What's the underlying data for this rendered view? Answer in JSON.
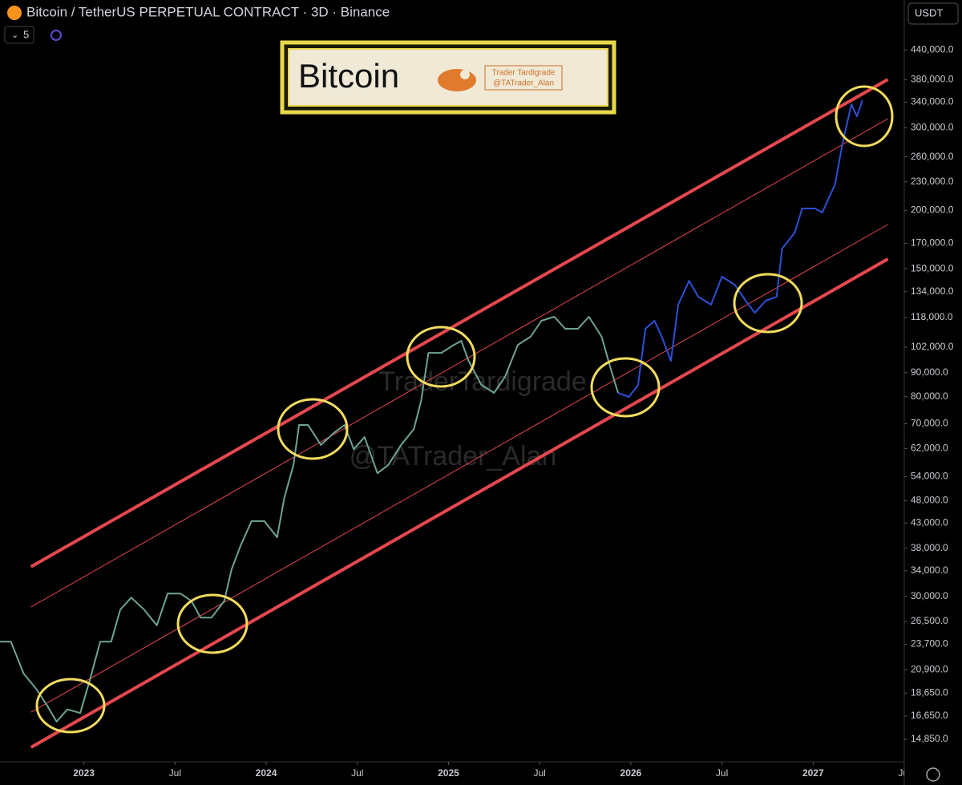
{
  "toolbar": {
    "indicator_count": "5",
    "currency": "USDT"
  },
  "logo": {
    "title": "Bitcoin",
    "badge_name": "Trader Tardigrade",
    "badge_handle": "@TATrader_Alan"
  },
  "watermark": {
    "name": "TraderTardigrade",
    "handle": "@TATrader_Alan"
  },
  "chart_data": {
    "type": "line",
    "title": "Bitcoin / TetherUS PERPETUAL CONTRACT · 3D · Binance",
    "log_scale": true,
    "grid": false,
    "xlim": [
      2022.54,
      2027.5
    ],
    "ylim": [
      13300,
      562000
    ],
    "xticks": [
      {
        "value": 2023,
        "label": "2023"
      },
      {
        "value": 2023.5,
        "label": "Jul"
      },
      {
        "value": 2024,
        "label": "2024"
      },
      {
        "value": 2024.5,
        "label": "Jul"
      },
      {
        "value": 2025,
        "label": "2025"
      },
      {
        "value": 2025.5,
        "label": "Jul"
      },
      {
        "value": 2026,
        "label": "2026"
      },
      {
        "value": 2026.5,
        "label": "Jul"
      },
      {
        "value": 2027,
        "label": "2027"
      },
      {
        "value": 2027.5,
        "label": "Jul"
      }
    ],
    "yticks": [
      {
        "value": 440000,
        "label": "440,000.0"
      },
      {
        "value": 380000,
        "label": "380,000.0"
      },
      {
        "value": 340000,
        "label": "340,000.0"
      },
      {
        "value": 300000,
        "label": "300,000.0"
      },
      {
        "value": 260000,
        "label": "260,000.0"
      },
      {
        "value": 230000,
        "label": "230,000.0"
      },
      {
        "value": 200000,
        "label": "200,000.0"
      },
      {
        "value": 170000,
        "label": "170,000.0"
      },
      {
        "value": 150000,
        "label": "150,000.0"
      },
      {
        "value": 134000,
        "label": "134,000.0"
      },
      {
        "value": 118000,
        "label": "118,000.0"
      },
      {
        "value": 102000,
        "label": "102,000.0"
      },
      {
        "value": 90000,
        "label": "90,000.0"
      },
      {
        "value": 80000,
        "label": "80,000.0"
      },
      {
        "value": 70000,
        "label": "70,000.0"
      },
      {
        "value": 62000,
        "label": "62,000.0"
      },
      {
        "value": 54000,
        "label": "54,000.0"
      },
      {
        "value": 48000,
        "label": "48,000.0"
      },
      {
        "value": 43000,
        "label": "43,000.0"
      },
      {
        "value": 38000,
        "label": "38,000.0"
      },
      {
        "value": 34000,
        "label": "34,000.0"
      },
      {
        "value": 30000,
        "label": "30,000.0"
      },
      {
        "value": 26500,
        "label": "26,500.0"
      },
      {
        "value": 23700,
        "label": "23,700.0"
      },
      {
        "value": 20900,
        "label": "20,900.0"
      },
      {
        "value": 18650,
        "label": "18,650.0"
      },
      {
        "value": 16650,
        "label": "16,650.0"
      },
      {
        "value": 14850,
        "label": "14,850.0"
      }
    ],
    "series": [
      {
        "color": "#6fa396",
        "x": [
          2022.54,
          2022.6,
          2022.67,
          2022.74,
          2022.8,
          2022.85,
          2022.91,
          2022.98,
          2023.03,
          2023.09,
          2023.15,
          2023.2,
          2023.26,
          2023.33,
          2023.4,
          2023.46,
          2023.53,
          2023.59,
          2023.64,
          2023.7,
          2023.77,
          2023.81,
          2023.86,
          2023.92,
          2023.99,
          2024.06,
          2024.1,
          2024.15,
          2024.18,
          2024.23,
          2024.3,
          2024.37,
          2024.43,
          2024.48,
          2024.54,
          2024.61,
          2024.67,
          2024.74,
          2024.81,
          2024.85,
          2024.89,
          2024.96,
          2025.03,
          2025.07,
          2025.11,
          2025.18,
          2025.25,
          2025.31,
          2025.38,
          2025.45,
          2025.51,
          2025.58,
          2025.64,
          2025.71,
          2025.77,
          2025.84,
          2025.89,
          2025.93
        ],
        "values": [
          24000,
          24000,
          20500,
          19000,
          17500,
          16200,
          17200,
          16900,
          19700,
          24000,
          24000,
          28100,
          29800,
          28100,
          26000,
          30400,
          30400,
          29300,
          27000,
          27000,
          29300,
          34200,
          38500,
          43400,
          43400,
          40100,
          48800,
          57200,
          69600,
          69600,
          63100,
          66900,
          69600,
          61800,
          65600,
          54900,
          57200,
          63100,
          68200,
          78300,
          99200,
          99200,
          103200,
          105300,
          95400,
          84800,
          81500,
          88200,
          103200,
          107400,
          116200,
          118500,
          111700,
          111700,
          118500,
          107400,
          91700,
          81500
        ]
      },
      {
        "color": "#2f4fd6",
        "x": [
          2025.93,
          2025.99,
          2026.04,
          2026.08,
          2026.13,
          2026.17,
          2026.22,
          2026.26,
          2026.32,
          2026.37,
          2026.44,
          2026.5,
          2026.57,
          2026.63,
          2026.68,
          2026.74,
          2026.8,
          2026.83,
          2026.9,
          2026.94,
          2027.01,
          2027.05,
          2027.12,
          2027.16,
          2027.21,
          2027.24,
          2027.27
        ],
        "values": [
          81500,
          79900,
          84800,
          111700,
          116200,
          107400,
          95400,
          125700,
          141400,
          130700,
          125700,
          144300,
          138700,
          128200,
          120800,
          128200,
          130700,
          165600,
          179200,
          201700,
          201700,
          197700,
          227000,
          276400,
          336600,
          317300,
          343300
        ]
      }
    ],
    "trendlines": [
      {
        "color": "#e5484e",
        "style": "thick",
        "x": [
          2022.71,
          2027.41
        ],
        "values": [
          34700,
          380300
        ]
      },
      {
        "color": "#e5484e",
        "style": "thin",
        "x": [
          2022.71,
          2027.41
        ],
        "values": [
          28470,
          313500
        ]
      },
      {
        "color": "#e5484e",
        "style": "thin",
        "x": [
          2022.71,
          2027.41
        ],
        "values": [
          16970,
          186400
        ]
      },
      {
        "color": "#e5484e",
        "style": "thick",
        "x": [
          2022.71,
          2027.41
        ],
        "values": [
          14280,
          157400
        ]
      }
    ]
  }
}
